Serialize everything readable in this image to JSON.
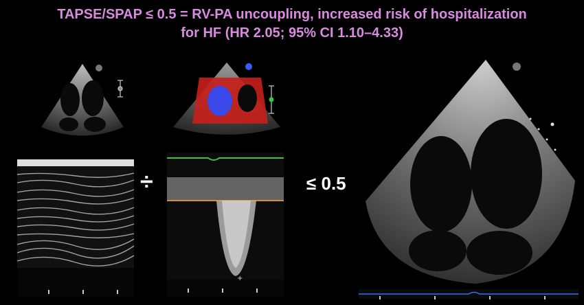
{
  "title": {
    "line1": "TAPSE/SPAP ≤ 0.5 = RV-PA uncoupling, increased risk of hospitalization",
    "line2": "for HF (HR 2.05; 95% CI 1.10–4.33)"
  },
  "operators": {
    "divide": "÷",
    "threshold": "≤ 0.5"
  },
  "colors": {
    "title": "#d98be0",
    "doppler_red": "#c8201a",
    "doppler_blue": "#2a4cff",
    "trace_green": "#3ec24a",
    "baseline_orange": "#d98a3a"
  },
  "images": [
    {
      "name": "echo-apical-4-chamber-small",
      "kind": "ultrasound"
    },
    {
      "name": "echo-m-mode-tapse",
      "kind": "ultrasound"
    },
    {
      "name": "echo-color-doppler-tricuspid",
      "kind": "ultrasound"
    },
    {
      "name": "echo-cw-doppler-tr",
      "kind": "ultrasound"
    },
    {
      "name": "echo-apical-4-chamber-large",
      "kind": "ultrasound"
    }
  ]
}
